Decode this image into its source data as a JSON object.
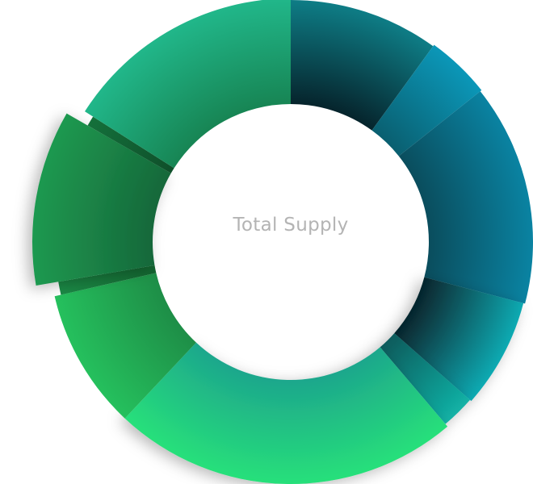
{
  "chart_data": {
    "type": "donut",
    "center_label": "Total Supply",
    "slices": [
      {
        "value": 10.0,
        "color_outer": "#0e7d86",
        "color_inner": "#06242c",
        "shadow": false
      },
      {
        "value": 4.3,
        "color_outer": "#0b97b8",
        "color_inner": "#0a5f70",
        "shadow": false
      },
      {
        "value": 14.8,
        "color_outer": "#0a83a2",
        "color_inner": "#0a4d5d",
        "shadow": false
      },
      {
        "value": 7.4,
        "color_outer": "#10aab2",
        "color_inner": "#06242c",
        "shadow": true
      },
      {
        "value": 2.3,
        "color_outer": "#12b2a6",
        "color_inner": "#0b5b5c",
        "shadow": true
      },
      {
        "value": 23.2,
        "color_outer": "#27e07a",
        "color_inner": "#1da78c",
        "shadow": true
      },
      {
        "value": 9.4,
        "color_outer": "#25c05d",
        "color_inner": "#1e8e47",
        "shadow": false
      },
      {
        "value": 0.9,
        "color_outer": "#1b8a46",
        "color_inner": "#13632f",
        "shadow": false
      },
      {
        "value": 11.0,
        "color_outer": "#1f9950",
        "color_inner": "#15683a",
        "shadow": true
      },
      {
        "value": 0.7,
        "color_outer": "#14703b",
        "color_inner": "#0f4f2a",
        "shadow": false
      },
      {
        "value": 16.0,
        "color_outer": "#21b78a",
        "color_inner": "#178554",
        "shadow": false
      }
    ]
  }
}
